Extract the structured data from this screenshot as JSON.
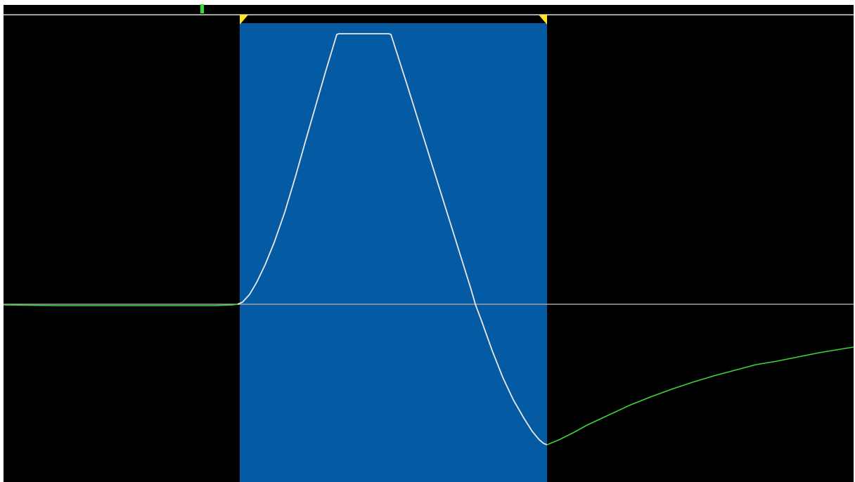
{
  "colors": {
    "background": "#000000",
    "frame": "#ffffff",
    "selection": "#055ba3",
    "baseline": "#a0a0a0",
    "top_rule": "#d8d8d8",
    "trace_outside": "#3ad63a",
    "trace_inside": "#e8e8e8",
    "markers": "#ffe81a"
  },
  "icons": {
    "left_marker": "selection-start-marker-icon",
    "right_marker": "selection-end-marker-icon",
    "playhead": "playhead-marker-icon"
  }
}
